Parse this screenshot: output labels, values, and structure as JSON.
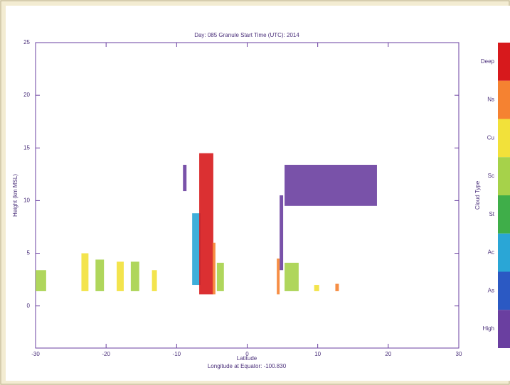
{
  "chart_data": {
    "type": "cloud-section",
    "title": "Day: 085 Granule Start Time (UTC): 2014",
    "x_label": "Latitude",
    "x_sublabel": "Longitude at Equator:    -100.830",
    "y_label": "Height (km MSL)",
    "colorbar_label": "Cloud Type",
    "xlim": [
      -30,
      30
    ],
    "xticks": [
      -30,
      -20,
      -10,
      0,
      10,
      20,
      30
    ],
    "ylim": [
      -4,
      25
    ],
    "yticks": [
      0,
      5,
      10,
      15,
      20,
      25
    ],
    "cloud_types": [
      {
        "name": "Deep",
        "color": "#d7191c"
      },
      {
        "name": "Ns",
        "color": "#f58231"
      },
      {
        "name": "Cu",
        "color": "#f2e13a"
      },
      {
        "name": "Sc",
        "color": "#a6d24a"
      },
      {
        "name": "St",
        "color": "#3fae49"
      },
      {
        "name": "Ac",
        "color": "#2aa6d6"
      },
      {
        "name": "As",
        "color": "#2b59c3"
      },
      {
        "name": "High",
        "color": "#6a3fa0"
      }
    ],
    "regions": [
      {
        "type": "High",
        "lat": [
          -9.1,
          -8.6
        ],
        "height": [
          10.9,
          13.4
        ]
      },
      {
        "type": "Ac",
        "lat": [
          -7.8,
          -6.6
        ],
        "height": [
          2.0,
          8.8
        ]
      },
      {
        "type": "Deep",
        "lat": [
          -6.8,
          -4.8
        ],
        "height": [
          1.1,
          14.5
        ]
      },
      {
        "type": "Ns",
        "lat": [
          -4.9,
          -4.5
        ],
        "height": [
          1.1,
          6.0
        ]
      },
      {
        "type": "High",
        "lat": [
          5.3,
          18.4
        ],
        "height": [
          9.5,
          13.4
        ]
      },
      {
        "type": "High",
        "lat": [
          4.6,
          5.1
        ],
        "height": [
          3.4,
          10.5
        ]
      },
      {
        "type": "Sc",
        "lat": [
          -30,
          -28.5
        ],
        "height": [
          1.4,
          3.4
        ]
      },
      {
        "type": "Cu",
        "lat": [
          -23.5,
          -22.5
        ],
        "height": [
          1.4,
          5.0
        ]
      },
      {
        "type": "Sc",
        "lat": [
          -21.5,
          -20.3
        ],
        "height": [
          1.4,
          4.4
        ]
      },
      {
        "type": "Cu",
        "lat": [
          -18.5,
          -17.5
        ],
        "height": [
          1.4,
          4.2
        ]
      },
      {
        "type": "Sc",
        "lat": [
          -16.5,
          -15.3
        ],
        "height": [
          1.4,
          4.2
        ]
      },
      {
        "type": "Cu",
        "lat": [
          -13.5,
          -12.8
        ],
        "height": [
          1.4,
          3.4
        ]
      },
      {
        "type": "Sc",
        "lat": [
          -4.3,
          -3.3
        ],
        "height": [
          1.4,
          4.1
        ]
      },
      {
        "type": "Ns",
        "lat": [
          4.2,
          4.6
        ],
        "height": [
          1.1,
          4.5
        ]
      },
      {
        "type": "Sc",
        "lat": [
          5.3,
          7.3
        ],
        "height": [
          1.4,
          4.1
        ]
      },
      {
        "type": "Cu",
        "lat": [
          9.5,
          10.2
        ],
        "height": [
          1.4,
          2.0
        ]
      },
      {
        "type": "Ns",
        "lat": [
          12.5,
          13.0
        ],
        "height": [
          1.4,
          2.1
        ]
      }
    ]
  }
}
